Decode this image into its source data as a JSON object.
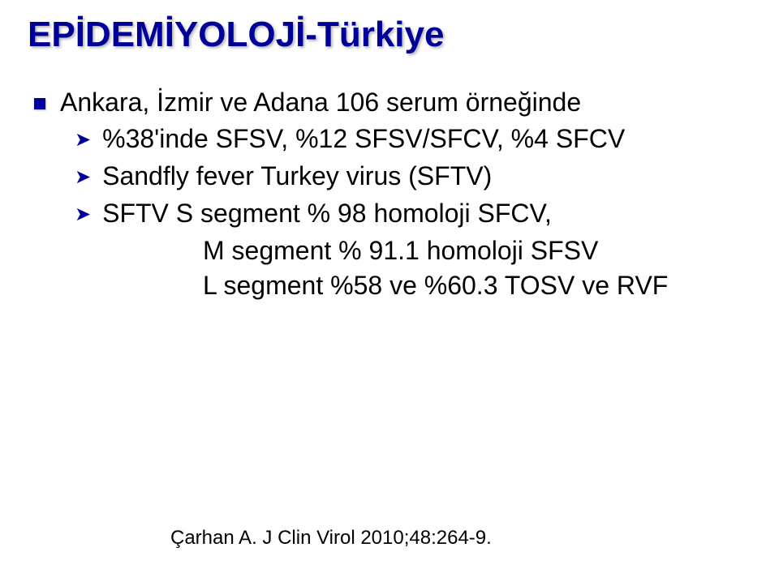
{
  "colors": {
    "title_color": "#000099",
    "bullet_color": "#000099",
    "text_color": "#000000",
    "background": "#ffffff"
  },
  "typography": {
    "title_fontsize_pt": 33,
    "body_fontsize_pt": 24,
    "citation_fontsize_pt": 18,
    "font_family": "Arial"
  },
  "title": "EPİDEMİYOLOJİ-Türkiye",
  "main_bullet": "Ankara, İzmir ve Adana 106 serum örneğinde",
  "sub_bullets": [
    "%38'inde SFSV, %12 SFSV/SFCV, %4 SFCV",
    "Sandfly fever Turkey virus (SFTV)",
    "SFTV  S segment   % 98 homoloji  SFCV,"
  ],
  "continuation_lines": [
    "M segment  % 91.1 homoloji SFSV",
    "L segment   %58 ve %60.3 TOSV ve RVF"
  ],
  "citation": "Çarhan A. J Clin Virol 2010;48:264-9."
}
